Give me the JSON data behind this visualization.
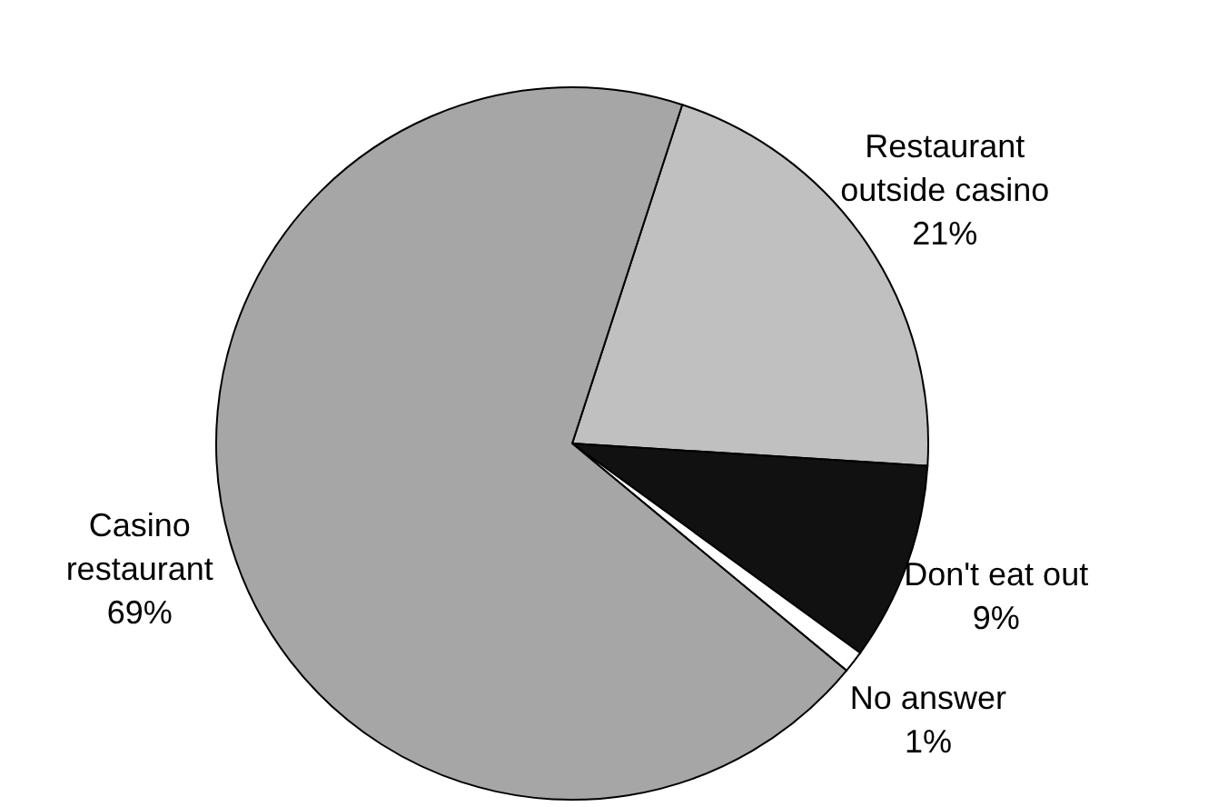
{
  "chart_data": {
    "type": "pie",
    "categories": [
      "Restaurant outside casino",
      "Don't eat out",
      "No answer",
      "Casino restaurant"
    ],
    "values": [
      21,
      9,
      1,
      69
    ],
    "colors": [
      "#c0c0c0",
      "#111111",
      "#ffffff",
      "#a6a6a6"
    ],
    "value_labels": [
      "21%",
      "9%",
      "1%",
      "69%"
    ],
    "legend": false
  }
}
